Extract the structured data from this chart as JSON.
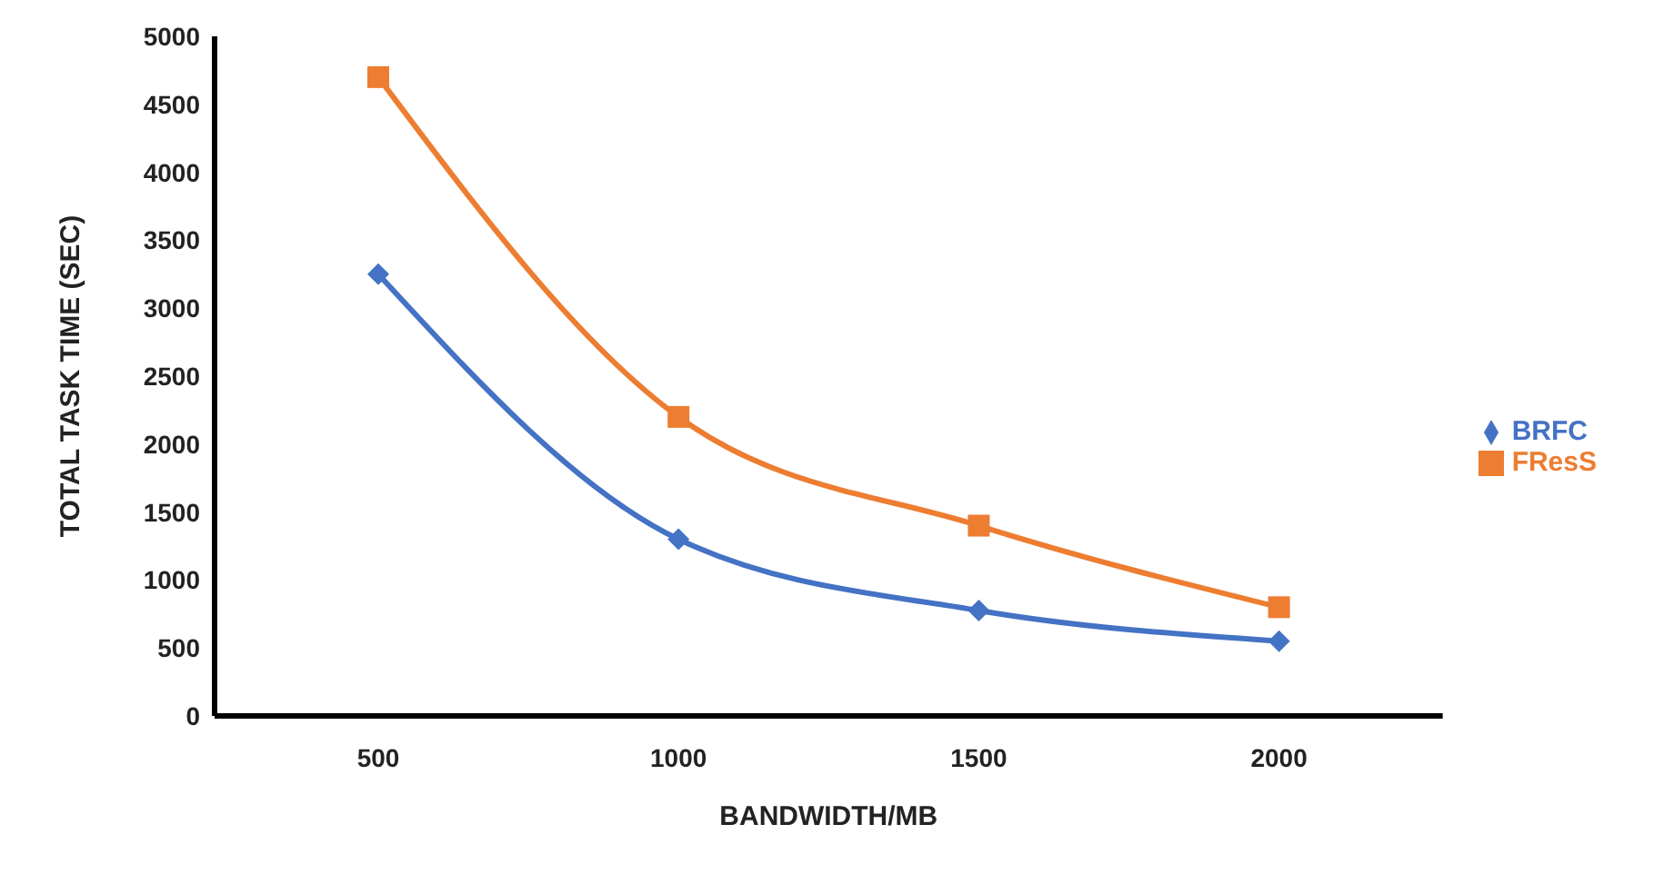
{
  "chart_data": {
    "type": "line",
    "xlabel": "BANDWIDTH/MB",
    "ylabel": "TOTAL TASK TIME (SEC)",
    "categories": [
      "500",
      "1000",
      "1500",
      "2000"
    ],
    "series": [
      {
        "name": "BRFC",
        "color": "#4472c4",
        "marker": "diamond",
        "values": [
          3250,
          1300,
          775,
          550
        ]
      },
      {
        "name": "FResS",
        "color": "#ed7d31",
        "marker": "square",
        "values": [
          4700,
          2200,
          1400,
          800
        ]
      }
    ],
    "ylim": [
      0,
      5000
    ],
    "yticks": [
      0,
      500,
      1000,
      1500,
      2000,
      2500,
      3000,
      3500,
      4000,
      4500,
      5000
    ],
    "grid": false,
    "legend": "right"
  }
}
